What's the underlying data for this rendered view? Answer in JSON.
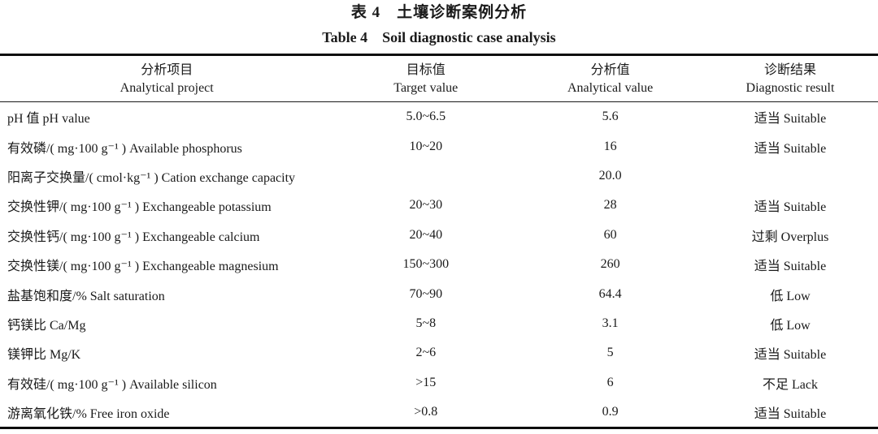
{
  "title": {
    "zh": "表 4　土壤诊断案例分析",
    "en": "Table 4　Soil diagnostic case analysis"
  },
  "table": {
    "columns": [
      {
        "zh": "分析项目",
        "en": "Analytical project"
      },
      {
        "zh": "目标值",
        "en": "Target value"
      },
      {
        "zh": "分析值",
        "en": "Analytical value"
      },
      {
        "zh": "诊断结果",
        "en": "Diagnostic result"
      }
    ],
    "rows": [
      {
        "project": "pH 值 pH value",
        "target": "5.0~6.5",
        "analytical": "5.6",
        "diagnostic": "适当 Suitable"
      },
      {
        "project": "有效磷/( mg·100 g⁻¹ ) Available phosphorus",
        "target": "10~20",
        "analytical": "16",
        "diagnostic": "适当 Suitable"
      },
      {
        "project": "阳离子交换量/( cmol·kg⁻¹ ) Cation exchange capacity",
        "target": "",
        "analytical": "20.0",
        "diagnostic": ""
      },
      {
        "project": "交换性钾/( mg·100 g⁻¹ ) Exchangeable potassium",
        "target": "20~30",
        "analytical": "28",
        "diagnostic": "适当 Suitable"
      },
      {
        "project": "交换性钙/( mg·100 g⁻¹ ) Exchangeable calcium",
        "target": "20~40",
        "analytical": "60",
        "diagnostic": "过剩 Overplus"
      },
      {
        "project": "交换性镁/( mg·100 g⁻¹ ) Exchangeable magnesium",
        "target": "150~300",
        "analytical": "260",
        "diagnostic": "适当 Suitable"
      },
      {
        "project": "盐基饱和度/% Salt saturation",
        "target": "70~90",
        "analytical": "64.4",
        "diagnostic": "低 Low"
      },
      {
        "project": "钙镁比 Ca/Mg",
        "target": "5~8",
        "analytical": "3.1",
        "diagnostic": "低 Low"
      },
      {
        "project": "镁钾比 Mg/K",
        "target": "2~6",
        "analytical": "5",
        "diagnostic": "适当 Suitable"
      },
      {
        "project": "有效硅/( mg·100 g⁻¹ ) Available silicon",
        "target": ">15",
        "analytical": "6",
        "diagnostic": "不足 Lack"
      },
      {
        "project": "游离氧化铁/% Free iron oxide",
        "target": ">0.8",
        "analytical": "0.9",
        "diagnostic": "适当 Suitable"
      }
    ]
  },
  "colors": {
    "background": "#ffffff",
    "text": "#1a1a1a",
    "rule": "#0d0d0d"
  }
}
